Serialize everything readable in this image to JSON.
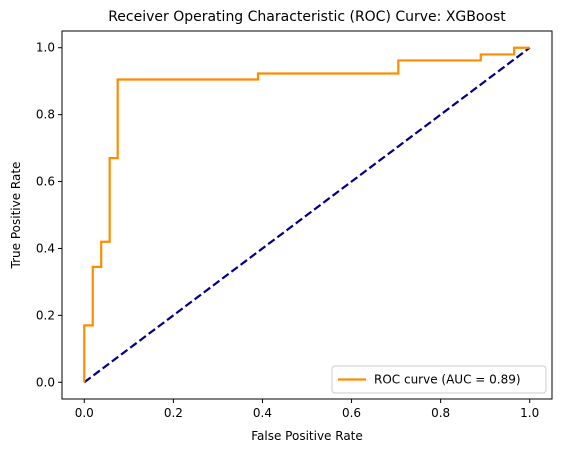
{
  "chart_data": {
    "type": "line",
    "title": "Receiver Operating Characteristic (ROC) Curve: XGBoost",
    "xlabel": "False Positive Rate",
    "ylabel": "True Positive Rate",
    "xlim": [
      -0.05,
      1.05
    ],
    "ylim": [
      -0.05,
      1.05
    ],
    "xticks": [
      0.0,
      0.2,
      0.4,
      0.6,
      0.8,
      1.0
    ],
    "xtick_labels": [
      "0.0",
      "0.2",
      "0.4",
      "0.6",
      "0.8",
      "1.0"
    ],
    "yticks": [
      0.0,
      0.2,
      0.4,
      0.6,
      0.8,
      1.0
    ],
    "ytick_labels": [
      "0.0",
      "0.2",
      "0.4",
      "0.6",
      "0.8",
      "1.0"
    ],
    "grid": false,
    "legend_position": "lower-right",
    "series": [
      {
        "name": "ROC curve (AUC = 0.89)",
        "color": "#ff8c00",
        "style": "solid",
        "x": [
          0.0,
          0.0,
          0.005,
          0.005,
          0.019,
          0.019,
          0.038,
          0.038,
          0.057,
          0.057,
          0.075,
          0.075,
          0.39,
          0.39,
          0.705,
          0.705,
          0.89,
          0.89,
          0.965,
          0.965,
          1.0
        ],
        "y": [
          0.0,
          0.17,
          0.17,
          0.17,
          0.17,
          0.345,
          0.345,
          0.42,
          0.42,
          0.67,
          0.67,
          0.905,
          0.905,
          0.923,
          0.923,
          0.962,
          0.962,
          0.98,
          0.98,
          1.0,
          1.0
        ]
      },
      {
        "color": "#00008b",
        "style": "dashed",
        "x": [
          0.0,
          1.0
        ],
        "y": [
          0.0,
          1.0
        ]
      }
    ]
  }
}
